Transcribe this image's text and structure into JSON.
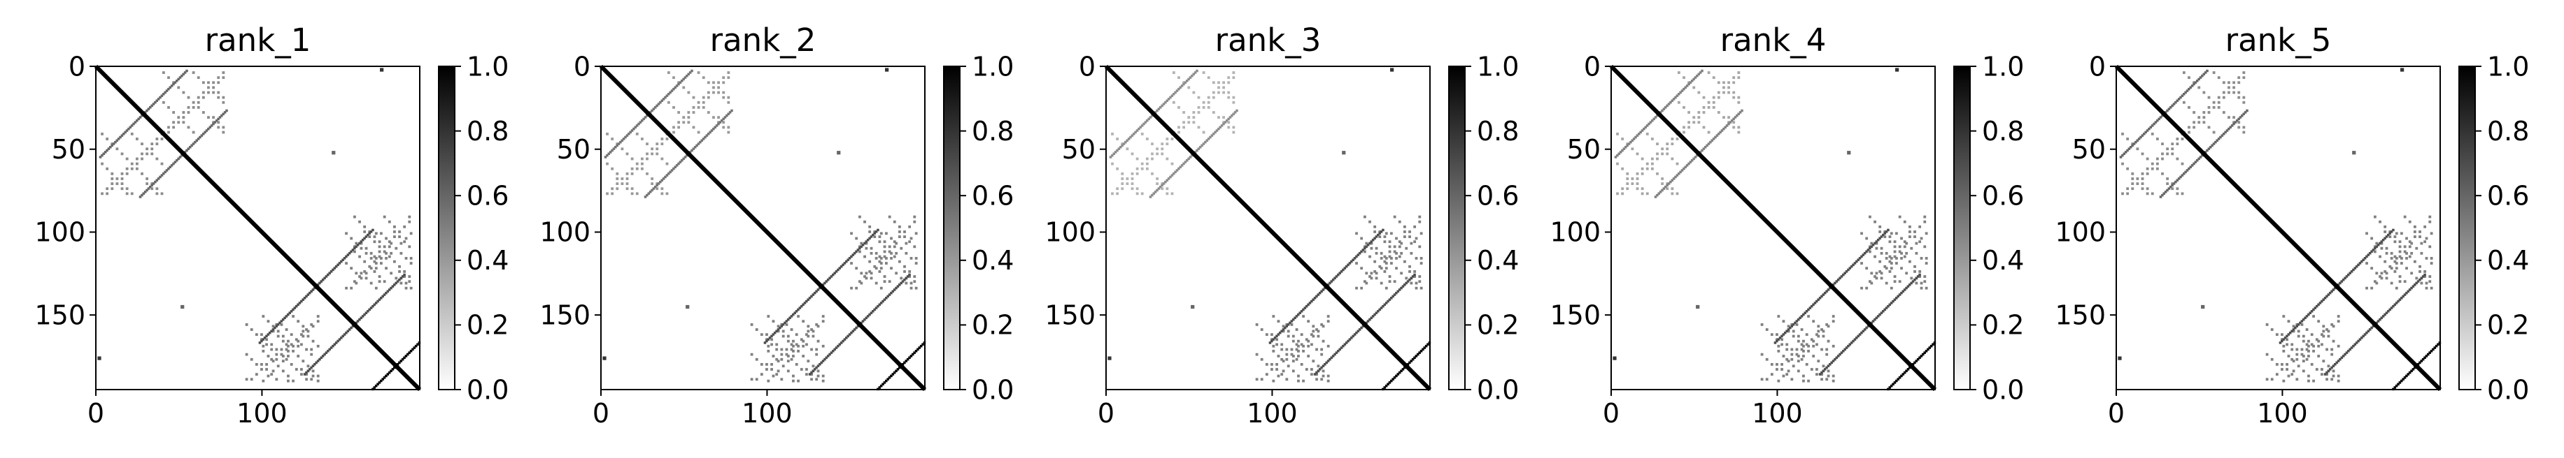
{
  "chart_data": [
    {
      "type": "heatmap",
      "title": "rank_1",
      "xlabel": "",
      "ylabel": "",
      "matrix_size": 195,
      "xlim": [
        0,
        195
      ],
      "ylim": [
        195,
        0
      ],
      "x_ticks": [
        0,
        100
      ],
      "y_ticks": [
        0,
        50,
        100,
        150
      ],
      "colormap": "gray_r",
      "colorbar": {
        "range": [
          0.0,
          1.0
        ],
        "ticks": [
          "0.0",
          "0.2",
          "0.4",
          "0.6",
          "0.8",
          "1.0"
        ]
      },
      "features": {
        "main_diagonal": {
          "from": 0,
          "to": 195,
          "value": 1.0
        },
        "antidiagonal_arms": [
          {
            "center": [
              28,
              28
            ],
            "half_length": 26,
            "value": 0.6
          },
          {
            "center": [
              52,
              52
            ],
            "half_length": 26,
            "value": 0.6
          },
          {
            "center": [
              132,
              132
            ],
            "half_length": 34,
            "value": 0.7
          },
          {
            "center": [
              155,
              155
            ],
            "half_length": 30,
            "value": 0.7
          },
          {
            "center": [
              180,
              180
            ],
            "half_length": 14,
            "value": 1.0
          }
        ],
        "off_diagonal_blocks": [
          {
            "rows": [
              3,
              40
            ],
            "cols": [
              40,
              78
            ],
            "value": 0.45
          },
          {
            "rows": [
              100,
              135
            ],
            "cols": [
              150,
              190
            ],
            "value": 0.5
          },
          {
            "rows": [
              155,
              190
            ],
            "cols": [
              90,
              130
            ],
            "value": 0.5
          }
        ],
        "isolated_points": [
          {
            "row": 2,
            "col": 172,
            "value": 0.8
          },
          {
            "row": 52,
            "col": 143,
            "value": 0.6
          },
          {
            "row": 145,
            "col": 52,
            "value": 0.6
          },
          {
            "row": 176,
            "col": 2,
            "value": 0.8
          }
        ]
      }
    },
    {
      "type": "heatmap",
      "title": "rank_2",
      "xlabel": "",
      "ylabel": "",
      "matrix_size": 195,
      "xlim": [
        0,
        195
      ],
      "ylim": [
        195,
        0
      ],
      "x_ticks": [
        0,
        100
      ],
      "y_ticks": [
        0,
        50,
        100,
        150
      ],
      "colormap": "gray_r",
      "colorbar": {
        "range": [
          0.0,
          1.0
        ],
        "ticks": [
          "0.0",
          "0.2",
          "0.4",
          "0.6",
          "0.8",
          "1.0"
        ]
      },
      "features": {
        "main_diagonal": {
          "from": 0,
          "to": 195,
          "value": 1.0
        },
        "antidiagonal_arms": [
          {
            "center": [
              28,
              28
            ],
            "half_length": 26,
            "value": 0.55
          },
          {
            "center": [
              52,
              52
            ],
            "half_length": 26,
            "value": 0.55
          },
          {
            "center": [
              132,
              132
            ],
            "half_length": 34,
            "value": 0.7
          },
          {
            "center": [
              155,
              155
            ],
            "half_length": 30,
            "value": 0.7
          },
          {
            "center": [
              180,
              180
            ],
            "half_length": 14,
            "value": 1.0
          }
        ],
        "off_diagonal_blocks": [
          {
            "rows": [
              3,
              40
            ],
            "cols": [
              40,
              78
            ],
            "value": 0.4
          },
          {
            "rows": [
              100,
              135
            ],
            "cols": [
              150,
              190
            ],
            "value": 0.5
          },
          {
            "rows": [
              155,
              190
            ],
            "cols": [
              90,
              130
            ],
            "value": 0.5
          }
        ],
        "isolated_points": [
          {
            "row": 2,
            "col": 172,
            "value": 0.8
          },
          {
            "row": 52,
            "col": 143,
            "value": 0.6
          },
          {
            "row": 145,
            "col": 52,
            "value": 0.6
          },
          {
            "row": 176,
            "col": 2,
            "value": 0.8
          }
        ]
      }
    },
    {
      "type": "heatmap",
      "title": "rank_3",
      "xlabel": "",
      "ylabel": "",
      "matrix_size": 195,
      "xlim": [
        0,
        195
      ],
      "ylim": [
        195,
        0
      ],
      "x_ticks": [
        0,
        100
      ],
      "y_ticks": [
        0,
        50,
        100,
        150
      ],
      "colormap": "gray_r",
      "colorbar": {
        "range": [
          0.0,
          1.0
        ],
        "ticks": [
          "0.0",
          "0.2",
          "0.4",
          "0.6",
          "0.8",
          "1.0"
        ]
      },
      "features": {
        "main_diagonal": {
          "from": 0,
          "to": 195,
          "value": 1.0
        },
        "antidiagonal_arms": [
          {
            "center": [
              28,
              28
            ],
            "half_length": 26,
            "value": 0.45
          },
          {
            "center": [
              52,
              52
            ],
            "half_length": 26,
            "value": 0.45
          },
          {
            "center": [
              132,
              132
            ],
            "half_length": 34,
            "value": 0.7
          },
          {
            "center": [
              155,
              155
            ],
            "half_length": 30,
            "value": 0.7
          },
          {
            "center": [
              180,
              180
            ],
            "half_length": 14,
            "value": 1.0
          }
        ],
        "off_diagonal_blocks": [
          {
            "rows": [
              3,
              40
            ],
            "cols": [
              40,
              78
            ],
            "value": 0.3
          },
          {
            "rows": [
              100,
              135
            ],
            "cols": [
              150,
              190
            ],
            "value": 0.5
          },
          {
            "rows": [
              155,
              190
            ],
            "cols": [
              90,
              130
            ],
            "value": 0.5
          }
        ],
        "isolated_points": [
          {
            "row": 2,
            "col": 172,
            "value": 0.8
          },
          {
            "row": 52,
            "col": 143,
            "value": 0.6
          },
          {
            "row": 145,
            "col": 52,
            "value": 0.6
          },
          {
            "row": 176,
            "col": 2,
            "value": 0.8
          }
        ]
      }
    },
    {
      "type": "heatmap",
      "title": "rank_4",
      "xlabel": "",
      "ylabel": "",
      "matrix_size": 195,
      "xlim": [
        0,
        195
      ],
      "ylim": [
        195,
        0
      ],
      "x_ticks": [
        0,
        100
      ],
      "y_ticks": [
        0,
        50,
        100,
        150
      ],
      "colormap": "gray_r",
      "colorbar": {
        "range": [
          0.0,
          1.0
        ],
        "ticks": [
          "0.0",
          "0.2",
          "0.4",
          "0.6",
          "0.8",
          "1.0"
        ]
      },
      "features": {
        "main_diagonal": {
          "from": 0,
          "to": 195,
          "value": 1.0
        },
        "antidiagonal_arms": [
          {
            "center": [
              28,
              28
            ],
            "half_length": 26,
            "value": 0.5
          },
          {
            "center": [
              52,
              52
            ],
            "half_length": 26,
            "value": 0.5
          },
          {
            "center": [
              132,
              132
            ],
            "half_length": 34,
            "value": 0.7
          },
          {
            "center": [
              155,
              155
            ],
            "half_length": 30,
            "value": 0.7
          },
          {
            "center": [
              180,
              180
            ],
            "half_length": 14,
            "value": 1.0
          }
        ],
        "off_diagonal_blocks": [
          {
            "rows": [
              3,
              40
            ],
            "cols": [
              40,
              78
            ],
            "value": 0.35
          },
          {
            "rows": [
              100,
              135
            ],
            "cols": [
              150,
              190
            ],
            "value": 0.5
          },
          {
            "rows": [
              155,
              190
            ],
            "cols": [
              90,
              130
            ],
            "value": 0.5
          }
        ],
        "isolated_points": [
          {
            "row": 2,
            "col": 172,
            "value": 0.8
          },
          {
            "row": 52,
            "col": 143,
            "value": 0.6
          },
          {
            "row": 145,
            "col": 52,
            "value": 0.6
          },
          {
            "row": 176,
            "col": 2,
            "value": 0.8
          }
        ]
      }
    },
    {
      "type": "heatmap",
      "title": "rank_5",
      "xlabel": "",
      "ylabel": "",
      "matrix_size": 195,
      "xlim": [
        0,
        195
      ],
      "ylim": [
        195,
        0
      ],
      "x_ticks": [
        0,
        100
      ],
      "y_ticks": [
        0,
        50,
        100,
        150
      ],
      "colormap": "gray_r",
      "colorbar": {
        "range": [
          0.0,
          1.0
        ],
        "ticks": [
          "0.0",
          "0.2",
          "0.4",
          "0.6",
          "0.8",
          "1.0"
        ]
      },
      "features": {
        "main_diagonal": {
          "from": 0,
          "to": 195,
          "value": 1.0
        },
        "antidiagonal_arms": [
          {
            "center": [
              28,
              28
            ],
            "half_length": 26,
            "value": 0.6
          },
          {
            "center": [
              52,
              52
            ],
            "half_length": 26,
            "value": 0.6
          },
          {
            "center": [
              132,
              132
            ],
            "half_length": 34,
            "value": 0.7
          },
          {
            "center": [
              155,
              155
            ],
            "half_length": 30,
            "value": 0.7
          },
          {
            "center": [
              180,
              180
            ],
            "half_length": 14,
            "value": 1.0
          }
        ],
        "off_diagonal_blocks": [
          {
            "rows": [
              3,
              40
            ],
            "cols": [
              40,
              78
            ],
            "value": 0.45
          },
          {
            "rows": [
              100,
              135
            ],
            "cols": [
              150,
              190
            ],
            "value": 0.5
          },
          {
            "rows": [
              155,
              190
            ],
            "cols": [
              90,
              130
            ],
            "value": 0.5
          }
        ],
        "isolated_points": [
          {
            "row": 2,
            "col": 172,
            "value": 0.8
          },
          {
            "row": 52,
            "col": 143,
            "value": 0.6
          },
          {
            "row": 145,
            "col": 52,
            "value": 0.6
          },
          {
            "row": 176,
            "col": 2,
            "value": 0.8
          }
        ]
      }
    }
  ]
}
